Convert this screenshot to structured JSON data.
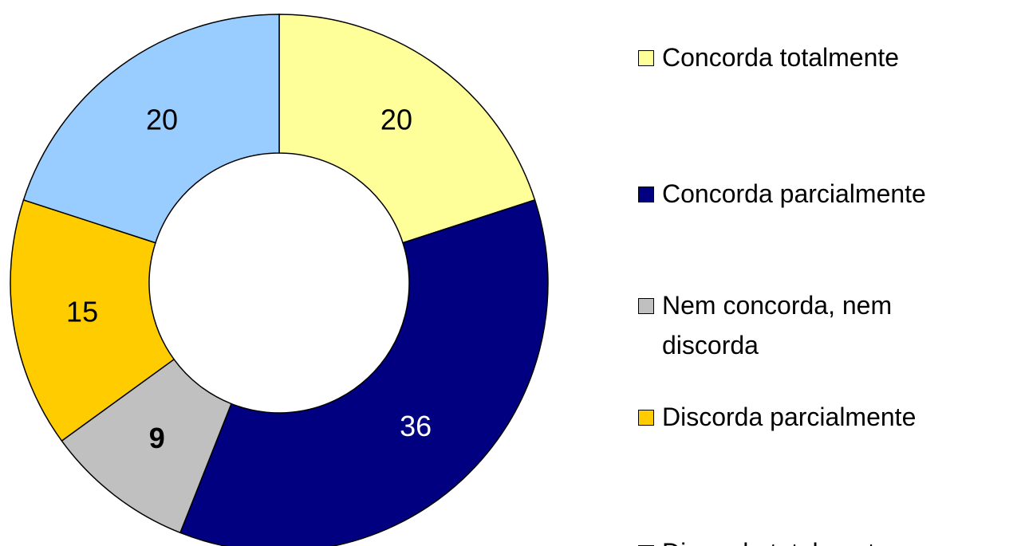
{
  "chart_data": {
    "type": "donut",
    "categories": [
      "Concorda totalmente",
      "Concorda parcialmente",
      "Nem concorda, nem discorda",
      "Discorda parcialmente",
      "Discorda totalmente"
    ],
    "values": [
      20,
      36,
      9,
      15,
      20
    ],
    "colors": [
      "#ffff99",
      "#000080",
      "#c0c0c0",
      "#ffcc00",
      "#99ccff"
    ],
    "legend": "right"
  }
}
